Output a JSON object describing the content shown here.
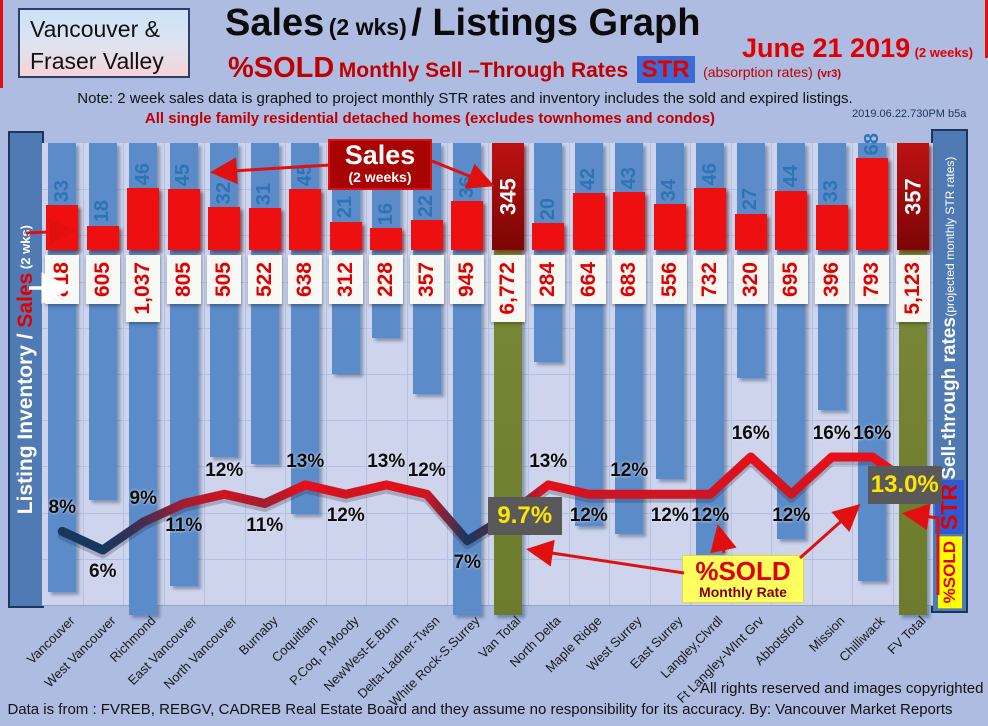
{
  "header": {
    "region_box_line1": "Vancouver &",
    "region_box_line2": "Fraser Valley",
    "title_main": "Sales",
    "title_paren": "(2 wks)",
    "title_rest": "/ Listings Graph",
    "date": "June 21 2019",
    "date_note": "(2 weeks)",
    "psold_label": "%SOLD",
    "psold_rest": "Monthly Sell –Through Rates",
    "str_badge": "STR",
    "absorption_note": "(absorption rates)",
    "version_note": "(vr3)",
    "note_line": "Note: 2 week sales data is graphed to project monthly STR rates and inventory includes the sold and expired listings.",
    "scope_line": "All single family residential detached homes (excludes townhomes and condos)",
    "timestamp": "2019.06.22.730PM b5a"
  },
  "left_axis": {
    "inventory_label": "Listing Inventory / ",
    "sales_label": "Sales",
    "sales_note": " (2  wks)"
  },
  "right_axis": {
    "label": "Sell-through rates",
    "note": "  (projected monthly STR rates)",
    "str_badge": "STR",
    "psold_badge": "%SOLD"
  },
  "callouts": {
    "sales_title": "Sales",
    "sales_sub": "(2 weeks)",
    "psold_title": "%SOLD",
    "psold_sub": "Monthly Rate"
  },
  "footer": {
    "rights": "All rights reserved and  images copyrighted",
    "source": "Data is from : FVREB, REBGV, CADREB Real Estate Board and they assume no responsibility for its accuracy. By: Vancouver Market Reports"
  },
  "chart_data": {
    "type": "bar",
    "title": "Sales (2 wks)/ Listings Graph — June 21 2019",
    "categories": [
      "Vancouver",
      "West Vancouver",
      "Richmond",
      "East Vancouver",
      "North Vancouver",
      "Burnaby",
      "Coquitlam",
      "P.Coq, P.Moody",
      "NewWest-E.Burn",
      "Delta-Ladner-Twsn",
      "White Rock-S.Surrey",
      "Van Total",
      "North Delta",
      "Maple Ridge",
      "West Surrey",
      "East Surrey",
      "Langley,Clvrdl",
      "Ft Langley-WInt Grv",
      "Abbotsford",
      "Mission",
      "Chilliwack",
      "FV Total"
    ],
    "series": [
      {
        "name": "Sales (2 weeks)",
        "values": [
          33,
          18,
          46,
          45,
          32,
          31,
          45,
          21,
          16,
          22,
          36,
          345,
          20,
          42,
          43,
          34,
          46,
          27,
          44,
          33,
          68,
          357
        ]
      },
      {
        "name": "Listing Inventory",
        "values": [
          818,
          605,
          1037,
          805,
          505,
          522,
          638,
          312,
          228,
          357,
          945,
          6772,
          284,
          664,
          683,
          556,
          732,
          320,
          695,
          396,
          793,
          5123
        ]
      },
      {
        "name": "Sell-through rate %",
        "values": [
          8,
          6,
          9,
          11,
          12,
          11,
          13,
          12,
          13,
          12,
          7,
          9.7,
          13,
          12,
          12,
          12,
          12,
          16,
          12,
          16,
          16,
          13
        ]
      }
    ],
    "inventory_labels": [
      "818",
      "605",
      "1,037",
      "805",
      "505",
      "522",
      "638",
      "312",
      "228",
      "357",
      "945",
      "6,772",
      "284",
      "664",
      "683",
      "556",
      "732",
      "320",
      "695",
      "396",
      "793",
      "5,123"
    ],
    "str_labels": [
      "8%",
      "6%",
      "9%",
      "11%",
      "12%",
      "11%",
      "13%",
      "12%",
      "13%",
      "12%",
      "7%",
      "9.7%",
      "13%",
      "12%",
      "12%",
      "12%",
      "12%",
      "16%",
      "12%",
      "16%",
      "16%",
      "13.0%"
    ],
    "str_label_side": [
      "above",
      "below",
      "above",
      "below",
      "above",
      "below",
      "above",
      "below",
      "above",
      "above",
      "below",
      "box",
      "above",
      "below",
      "above",
      "below",
      "below",
      "above",
      "below",
      "above",
      "above",
      "box"
    ],
    "total_indexes": [
      11,
      21
    ],
    "ylabel_left": "Listing Inventory / Sales (2 wks)",
    "ylabel_right": "Sell-through rates (projected monthly STR rates)",
    "grid": true,
    "legend_position": "none"
  },
  "colors": {
    "background": "#aebce2",
    "plot_bg": "#cdd4ec",
    "grid": "#b3c0e2",
    "inventory_bar": "#5b8bc9",
    "sales_bar": "#ee1010",
    "total_sales_bar": "#a80404",
    "total_inventory_bar": "#768435",
    "line_low": "#17375e",
    "line_high": "#e6101a",
    "accent_red": "#c00000",
    "highlight_box": "#595959",
    "highlight_text": "#ffe600",
    "sidebar": "#4f7ab3"
  }
}
